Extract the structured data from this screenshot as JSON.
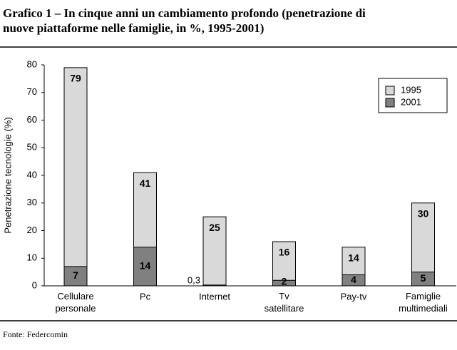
{
  "chart_data": {
    "type": "bar",
    "title_lines": [
      "Grafico 1 – In cinque anni un cambiamento profondo (penetrazione di",
      "nuove piattaforme nelle famiglie, in %, 1995-2001)"
    ],
    "y_label": "Penetrazione tecnologie (%)",
    "source": "Fonte: Federcomin",
    "categories": [
      "Cellulare personale",
      "Pc",
      "Internet",
      "Tv satellitare",
      "Pay-tv",
      "Famiglie multimediali"
    ],
    "series": [
      {
        "name": "1995",
        "color": "#d9d9d9",
        "values": [
          79,
          41,
          25,
          16,
          14,
          30
        ]
      },
      {
        "name": "2001",
        "color": "#808080",
        "values": [
          7,
          14,
          0.3,
          2,
          4,
          5
        ],
        "value_labels": [
          "7",
          "14",
          "0,3",
          "2",
          "4",
          "5"
        ]
      }
    ],
    "overlap": true,
    "ylim": [
      0,
      80
    ],
    "yticks": [
      0,
      10,
      20,
      30,
      40,
      50,
      60,
      70,
      80
    ],
    "legend": "top-right"
  }
}
